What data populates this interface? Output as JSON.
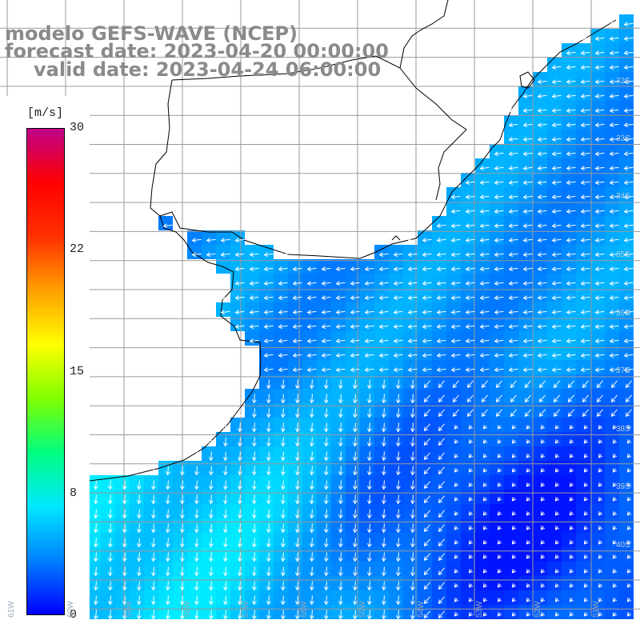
{
  "header": {
    "model_title": "modelo GEFS-WAVE (NCEP)",
    "forecast_date": "forecast date: 2023-04-20 00:00:00",
    "valid_date": "valid date: 2023-04-24 06:00:00"
  },
  "colorbar": {
    "unit": "[m/s]",
    "ticks": [
      "30",
      "22",
      "15",
      "8",
      "0"
    ],
    "range": [
      0,
      30
    ],
    "colors": [
      "#0000ff",
      "#0080ff",
      "#00e8ff",
      "#00ff80",
      "#80ff00",
      "#ffff00",
      "#ffa000",
      "#ff3000",
      "#ff0000",
      "#c0008a"
    ]
  },
  "lat_labels": [
    "32S",
    "33S",
    "34S",
    "35S",
    "36S",
    "37S",
    "38S",
    "39S",
    "40S"
  ],
  "lon_labels": [
    "61W",
    "60W",
    "59W",
    "58W",
    "57W",
    "56W",
    "55W",
    "54W",
    "53W",
    "52W",
    "51W"
  ],
  "colors": {
    "land": "#ffffff",
    "grid": "#9a9a9a",
    "coast": "#000000",
    "arrows": "#ffffff"
  }
}
